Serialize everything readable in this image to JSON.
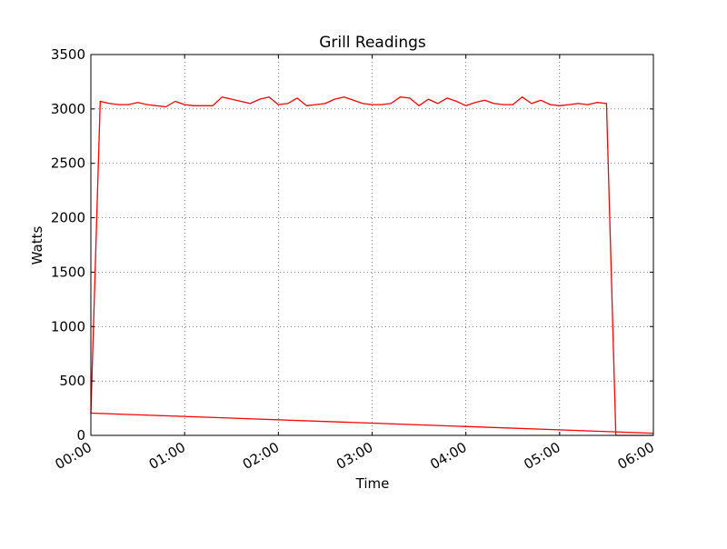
{
  "chart_data": {
    "type": "line",
    "title": "Grill Readings",
    "xlabel": "Time",
    "ylabel": "Watts",
    "xlim": [
      "00:00",
      "06:00"
    ],
    "ylim": [
      0,
      3500
    ],
    "x_ticks": [
      "00:00",
      "01:00",
      "02:00",
      "03:00",
      "04:00",
      "05:00",
      "06:00"
    ],
    "y_ticks": [
      "0",
      "500",
      "1000",
      "1500",
      "2000",
      "2500",
      "3000",
      "3500"
    ],
    "grid": true,
    "legend": "none",
    "series": [
      {
        "color": "#ff0000",
        "x": [
          "00:00",
          "00:06",
          "00:12",
          "00:18",
          "00:24",
          "00:30",
          "00:36",
          "00:42",
          "00:48",
          "00:54",
          "01:00",
          "01:06",
          "01:12",
          "01:18",
          "01:24",
          "01:30",
          "01:36",
          "01:42",
          "01:48",
          "01:54",
          "02:00",
          "02:06",
          "02:12",
          "02:18",
          "02:24",
          "02:30",
          "02:36",
          "02:42",
          "02:48",
          "02:54",
          "03:00",
          "03:06",
          "03:12",
          "03:18",
          "03:24",
          "03:30",
          "03:36",
          "03:42",
          "03:48",
          "03:54",
          "04:00",
          "04:06",
          "04:12",
          "04:18",
          "04:24",
          "04:30",
          "04:36",
          "04:42",
          "04:48",
          "04:54",
          "05:00",
          "05:06",
          "05:12",
          "05:18",
          "05:24",
          "05:30",
          "05:36",
          "05:42",
          "05:48",
          "05:54",
          "06:00"
        ],
        "y": [
          200,
          3070,
          3050,
          3040,
          3040,
          3060,
          3040,
          3030,
          3020,
          3070,
          3040,
          3030,
          3030,
          3030,
          3110,
          3090,
          3070,
          3050,
          3090,
          3110,
          3040,
          3050,
          3100,
          3030,
          3040,
          3050,
          3090,
          3110,
          3080,
          3050,
          3040,
          3040,
          3050,
          3110,
          3100,
          3030,
          3090,
          3050,
          3100,
          3070,
          3030,
          3060,
          3080,
          3050,
          3040,
          3040,
          3110,
          3050,
          3080,
          3040,
          3030,
          3040,
          3050,
          3040,
          3060,
          3050,
          0,
          0,
          0,
          0,
          0
        ]
      },
      {
        "color": "#ff0000",
        "x": [
          "00:00",
          "06:00"
        ],
        "y": [
          205,
          20
        ]
      }
    ]
  }
}
